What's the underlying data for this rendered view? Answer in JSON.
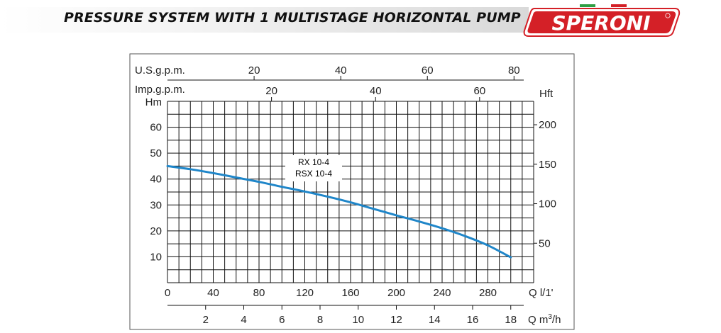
{
  "header": {
    "title": "PRESSURE SYSTEM WITH 1 MULTISTAGE HORIZONTAL PUMP",
    "logo_text": "SPERONI",
    "logo_color": "#d42027"
  },
  "chart_data": {
    "type": "line",
    "series": [
      {
        "name": "RX 10-4 / RSX 10-4",
        "label_lines": [
          "RX 10-4",
          "RSX 10-4"
        ],
        "x": [
          0,
          20,
          40,
          60,
          80,
          100,
          120,
          140,
          160,
          180,
          200,
          220,
          240,
          260,
          280,
          300
        ],
        "y": [
          45,
          43.8,
          42.3,
          40.6,
          38.9,
          37.0,
          35.2,
          33.2,
          31.0,
          28.5,
          26.0,
          23.6,
          21.0,
          18.0,
          14.4,
          9.8
        ],
        "color": "#1f86c9"
      }
    ],
    "primary_x": {
      "label": "Q l/1'",
      "range": [
        0,
        320
      ],
      "ticks": [
        0,
        40,
        80,
        120,
        160,
        200,
        240,
        280
      ]
    },
    "primary_y": {
      "label": "Hm",
      "range": [
        0,
        70
      ],
      "ticks": [
        10,
        20,
        30,
        40,
        50,
        60
      ]
    },
    "secondary_y": {
      "label": "Hft",
      "ticks": [
        50,
        100,
        150,
        200
      ],
      "unit_factor": 3.2808
    },
    "top_axis_usgpm": {
      "label": "U.S.g.p.m.",
      "ticks": [
        20,
        40,
        60,
        80
      ],
      "lpm_per_unit": 3.7854
    },
    "top_axis_impgpm": {
      "label": "Imp.g.p.m.",
      "ticks": [
        20,
        40,
        60
      ],
      "lpm_per_unit": 4.5461
    },
    "bottom_axis_m3h": {
      "label": "Q m³/h",
      "ticks": [
        2,
        4,
        6,
        8,
        10,
        12,
        14,
        16,
        18
      ],
      "lpm_per_unit": 16.6667
    },
    "grid": true
  }
}
